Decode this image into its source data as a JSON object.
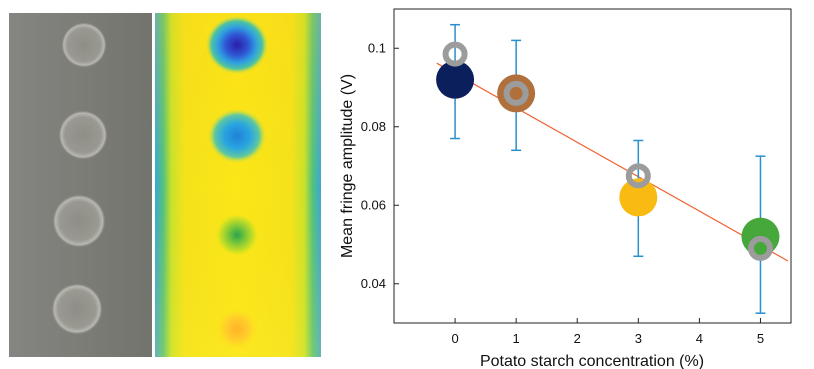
{
  "chart_data": {
    "type": "scatter",
    "xlabel": "Potato starch concentration (%)",
    "ylabel": "Mean fringe amplitude (V)",
    "xlim": [
      -1,
      5.5
    ],
    "ylim": [
      0.03,
      0.11
    ],
    "x_ticks": [
      0,
      1,
      2,
      3,
      4,
      5
    ],
    "y_ticks": [
      0.04,
      0.06,
      0.08,
      0.1
    ],
    "x_tick_labels": [
      "0",
      "1",
      "2",
      "3",
      "4",
      "5"
    ],
    "y_tick_labels": [
      "0.04",
      "0.06",
      "0.08",
      "0.1"
    ],
    "grid": false,
    "series": [
      {
        "marker": "filled-circle",
        "points": [
          {
            "x": 0,
            "y": 0.092,
            "color": "#0b1f5c"
          },
          {
            "x": 1,
            "y": 0.0885,
            "color": "#b0703c"
          },
          {
            "x": 3,
            "y": 0.062,
            "color": "#f9bb12"
          },
          {
            "x": 5,
            "y": 0.052,
            "color": "#46a83a"
          }
        ],
        "error_bars": [
          {
            "x": 0,
            "low": 0.077,
            "high": 0.106
          },
          {
            "x": 1,
            "low": 0.074,
            "high": 0.102
          },
          {
            "x": 3,
            "low": 0.047,
            "high": 0.0765
          },
          {
            "x": 5,
            "low": 0.0325,
            "high": 0.0725
          }
        ],
        "error_bar_color": "#2a8fce"
      },
      {
        "marker": "ring",
        "color": "#9c9c9c",
        "points": [
          {
            "x": 0,
            "y": 0.0985
          },
          {
            "x": 1,
            "y": 0.0885
          },
          {
            "x": 3,
            "y": 0.0675
          },
          {
            "x": 5,
            "y": 0.049
          }
        ]
      }
    ],
    "fit_line": {
      "x": [
        -0.3,
        5.45
      ],
      "y": [
        0.0962,
        0.0458
      ],
      "color": "#f0622f"
    }
  },
  "images": {
    "photo_spots": 4,
    "heatmap_spot_colors": [
      "#2a1ea8",
      "#1f7fd8",
      "#2ba34a",
      "#ffb428"
    ]
  }
}
